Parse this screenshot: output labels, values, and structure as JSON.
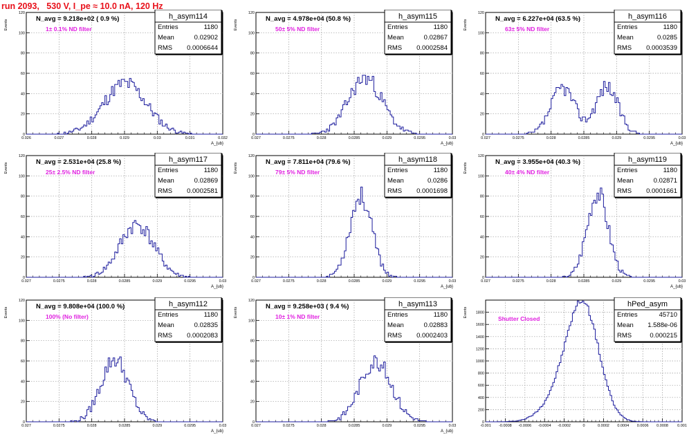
{
  "header": {
    "title": "run 2093,   530 V, I_pe ≈ 10.0 nA, 120 Hz",
    "color": "#e8101a"
  },
  "colors": {
    "histogram": "#1a1a9c",
    "annotation": "#e020e0",
    "grid": "#9a9a9a",
    "axis": "#000000"
  },
  "chart_data": [
    {
      "type": "bar",
      "name": "h_asym114",
      "title": "N_avg = 9.218e+02 ( 0.9 %)",
      "annotation": "1± 0.1% ND filter",
      "ylabel": "Events",
      "xlabel": "A_{ub}",
      "stats": [
        [
          "Entries",
          "1180"
        ],
        [
          "Mean",
          "0.02902"
        ],
        [
          "RMS",
          "0.0006644"
        ]
      ],
      "xlim": [
        0.026,
        0.032
      ],
      "ylim": [
        0,
        120
      ],
      "xticks": [
        0.026,
        0.027,
        0.028,
        0.029,
        0.03,
        0.031,
        0.032
      ],
      "xtick_labels": [
        "0.026",
        "0.027",
        "0.028",
        "0.029",
        "0.03",
        "0.031",
        "0.032"
      ],
      "yticks": [
        0,
        20,
        40,
        60,
        80,
        100,
        120
      ],
      "peaks": [
        {
          "mu": 0.02902,
          "sigma": 0.00066,
          "amp": 50
        }
      ],
      "seed": 11
    },
    {
      "type": "bar",
      "name": "h_asym115",
      "title": "N_avg = 4.978e+04 (50.8 %)",
      "annotation": "50± 5% ND filter",
      "ylabel": "Events",
      "xlabel": "A_{ub}",
      "stats": [
        [
          "Entries",
          "1180"
        ],
        [
          "Mean",
          "0.02867"
        ],
        [
          "RMS",
          "0.0002584"
        ]
      ],
      "xlim": [
        0.027,
        0.03
      ],
      "ylim": [
        0,
        120
      ],
      "xticks": [
        0.027,
        0.0275,
        0.028,
        0.0285,
        0.029,
        0.0295,
        0.03
      ],
      "xtick_labels": [
        "0.027",
        "0.0275",
        "0.028",
        "0.0285",
        "0.029",
        "0.0295",
        "0.03"
      ],
      "yticks": [
        0,
        20,
        40,
        60,
        80,
        100,
        120
      ],
      "peaks": [
        {
          "mu": 0.02867,
          "sigma": 0.00026,
          "amp": 55
        }
      ],
      "seed": 23
    },
    {
      "type": "bar",
      "name": "h_asym116",
      "title": "N_avg = 6.227e+04 (63.5 %)",
      "annotation": "63± 5% ND filter",
      "ylabel": "Events",
      "xlabel": "A_{ub}",
      "stats": [
        [
          "Entries",
          "1180"
        ],
        [
          "Mean",
          "0.0285"
        ],
        [
          "RMS",
          "0.0003539"
        ]
      ],
      "xlim": [
        0.027,
        0.03
      ],
      "ylim": [
        0,
        120
      ],
      "xticks": [
        0.027,
        0.0275,
        0.028,
        0.0285,
        0.029,
        0.0295,
        0.03
      ],
      "xtick_labels": [
        "0.027",
        "0.0275",
        "0.028",
        "0.0285",
        "0.029",
        "0.0295",
        "0.03"
      ],
      "yticks": [
        0,
        20,
        40,
        60,
        80,
        100,
        120
      ],
      "peaks": [
        {
          "mu": 0.02818,
          "sigma": 0.00018,
          "amp": 46
        },
        {
          "mu": 0.02885,
          "sigma": 0.00017,
          "amp": 47
        }
      ],
      "seed": 37
    },
    {
      "type": "bar",
      "name": "h_asym117",
      "title": "N_avg = 2.531e+04 (25.8 %)",
      "annotation": "25± 2.5% ND filter",
      "ylabel": "Events",
      "xlabel": "A_{ub}",
      "stats": [
        [
          "Entries",
          "1180"
        ],
        [
          "Mean",
          "0.02869"
        ],
        [
          "RMS",
          "0.0002581"
        ]
      ],
      "xlim": [
        0.027,
        0.03
      ],
      "ylim": [
        0,
        120
      ],
      "xticks": [
        0.027,
        0.0275,
        0.028,
        0.0285,
        0.029,
        0.0295,
        0.03
      ],
      "xtick_labels": [
        "0.027",
        "0.0275",
        "0.028",
        "0.0285",
        "0.029",
        "0.0295",
        "0.03"
      ],
      "yticks": [
        0,
        20,
        40,
        60,
        80,
        100,
        120
      ],
      "peaks": [
        {
          "mu": 0.02869,
          "sigma": 0.00026,
          "amp": 52
        }
      ],
      "seed": 41
    },
    {
      "type": "bar",
      "name": "h_asym118",
      "title": "N_avg = 7.811e+04 (79.6 %)",
      "annotation": "79± 5% ND filter",
      "ylabel": "Events",
      "xlabel": "A_{ub}",
      "stats": [
        [
          "Entries",
          "1180"
        ],
        [
          "Mean",
          "0.0286"
        ],
        [
          "RMS",
          "0.0001698"
        ]
      ],
      "xlim": [
        0.027,
        0.03
      ],
      "ylim": [
        0,
        120
      ],
      "xticks": [
        0.027,
        0.0275,
        0.028,
        0.0285,
        0.029,
        0.0295,
        0.03
      ],
      "xtick_labels": [
        "0.027",
        "0.0275",
        "0.028",
        "0.0285",
        "0.029",
        "0.0295",
        "0.03"
      ],
      "yticks": [
        0,
        20,
        40,
        60,
        80,
        100,
        120
      ],
      "peaks": [
        {
          "mu": 0.0286,
          "sigma": 0.00017,
          "amp": 80
        }
      ],
      "seed": 53
    },
    {
      "type": "bar",
      "name": "h_asym119",
      "title": "N_avg = 3.955e+04 (40.3 %)",
      "annotation": "40± 4% ND filter",
      "ylabel": "Events",
      "xlabel": "A_{ub}",
      "stats": [
        [
          "Entries",
          "1180"
        ],
        [
          "Mean",
          "0.02871"
        ],
        [
          "RMS",
          "0.0001661"
        ]
      ],
      "xlim": [
        0.027,
        0.03
      ],
      "ylim": [
        0,
        120
      ],
      "xticks": [
        0.027,
        0.0275,
        0.028,
        0.0285,
        0.029,
        0.0295,
        0.03
      ],
      "xtick_labels": [
        "0.027",
        "0.0275",
        "0.028",
        "0.0285",
        "0.029",
        "0.0295",
        "0.03"
      ],
      "yticks": [
        0,
        20,
        40,
        60,
        80,
        100,
        120
      ],
      "peaks": [
        {
          "mu": 0.02871,
          "sigma": 0.00016,
          "amp": 84
        }
      ],
      "seed": 67
    },
    {
      "type": "bar",
      "name": "h_asym112",
      "title": "N_avg = 9.808e+04 (100.0 %)",
      "annotation": "100% (No filter)",
      "ylabel": "Events",
      "xlabel": "A_{ub}",
      "stats": [
        [
          "Entries",
          "1180"
        ],
        [
          "Mean",
          "0.02835"
        ],
        [
          "RMS",
          "0.0002083"
        ]
      ],
      "xlim": [
        0.027,
        0.03
      ],
      "ylim": [
        0,
        120
      ],
      "xticks": [
        0.027,
        0.0275,
        0.028,
        0.0285,
        0.029,
        0.0295,
        0.03
      ],
      "xtick_labels": [
        "0.027",
        "0.0275",
        "0.028",
        "0.0285",
        "0.029",
        "0.0295",
        "0.03"
      ],
      "yticks": [
        0,
        20,
        40,
        60,
        80,
        100,
        120
      ],
      "peaks": [
        {
          "mu": 0.02835,
          "sigma": 0.00021,
          "amp": 62
        }
      ],
      "seed": 79
    },
    {
      "type": "bar",
      "name": "h_asym113",
      "title": "N_avg = 9.258e+03 ( 9.4 %)",
      "annotation": "10± 1% ND filter",
      "ylabel": "Events",
      "xlabel": "A_{ub}",
      "stats": [
        [
          "Entries",
          "1180"
        ],
        [
          "Mean",
          "0.02883"
        ],
        [
          "RMS",
          "0.0002403"
        ]
      ],
      "xlim": [
        0.027,
        0.03
      ],
      "ylim": [
        0,
        120
      ],
      "xticks": [
        0.027,
        0.0275,
        0.028,
        0.0285,
        0.029,
        0.0295,
        0.03
      ],
      "xtick_labels": [
        "0.027",
        "0.0275",
        "0.028",
        "0.0285",
        "0.029",
        "0.0295",
        "0.03"
      ],
      "yticks": [
        0,
        20,
        40,
        60,
        80,
        100,
        120
      ],
      "peaks": [
        {
          "mu": 0.02883,
          "sigma": 0.00024,
          "amp": 60
        }
      ],
      "seed": 83
    },
    {
      "type": "bar",
      "name": "hPed_asym",
      "title": "",
      "annotation": "Shutter Closed",
      "ylabel": "Events",
      "xlabel": "",
      "stats": [
        [
          "Entries",
          "45710"
        ],
        [
          "Mean",
          "1.588e-06"
        ],
        [
          "RMS",
          "0.000215"
        ]
      ],
      "xlim": [
        -0.001,
        0.001
      ],
      "ylim": [
        0,
        2000
      ],
      "xticks": [
        -0.001,
        -0.0008,
        -0.0006,
        -0.0004,
        -0.0002,
        0,
        0.0002,
        0.0004,
        0.0006,
        0.0008,
        0.001
      ],
      "xtick_labels": [
        "-0.001",
        "-0.0008",
        "-0.0006",
        "-0.0004",
        "-0.0002",
        "0",
        "0.0002",
        "0.0004",
        "0.0006",
        "0.0008",
        "0.001"
      ],
      "yticks": [
        0,
        200,
        400,
        600,
        800,
        1000,
        1200,
        1400,
        1600,
        1800
      ],
      "peaks": [
        {
          "mu": 0.0,
          "sigma": 0.00016,
          "amp": 1780
        },
        {
          "mu": -0.00022,
          "sigma": 0.00018,
          "amp": 420
        }
      ],
      "seed": 97
    }
  ]
}
